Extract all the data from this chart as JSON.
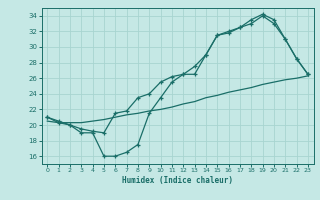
{
  "xlabel": "Humidex (Indice chaleur)",
  "ylabel": "",
  "bg_color": "#c5e8e5",
  "grid_color": "#a8d4d0",
  "line_color": "#1a6e68",
  "xlim": [
    -0.5,
    23.5
  ],
  "ylim": [
    15.0,
    35.0
  ],
  "xticks": [
    0,
    1,
    2,
    3,
    4,
    5,
    6,
    7,
    8,
    9,
    10,
    11,
    12,
    13,
    14,
    15,
    16,
    17,
    18,
    19,
    20,
    21,
    22,
    23
  ],
  "yticks": [
    16,
    18,
    20,
    22,
    24,
    26,
    28,
    30,
    32,
    34
  ],
  "line1_x": [
    0,
    1,
    2,
    3,
    4,
    5,
    6,
    7,
    8,
    9,
    10,
    11,
    12,
    13,
    14,
    15,
    16,
    17,
    18,
    19,
    20,
    21,
    22,
    23
  ],
  "line1_y": [
    20.5,
    20.3,
    20.3,
    20.3,
    20.5,
    20.7,
    21.0,
    21.3,
    21.5,
    21.8,
    22.0,
    22.3,
    22.7,
    23.0,
    23.5,
    23.8,
    24.2,
    24.5,
    24.8,
    25.2,
    25.5,
    25.8,
    26.0,
    26.3
  ],
  "line2_x": [
    0,
    1,
    2,
    3,
    4,
    5,
    6,
    7,
    8,
    9,
    10,
    11,
    12,
    13,
    14,
    15,
    16,
    17,
    18,
    19,
    20,
    21,
    22,
    23
  ],
  "line2_y": [
    21.0,
    20.5,
    20.0,
    19.5,
    19.2,
    19.0,
    21.5,
    21.8,
    23.5,
    24.0,
    25.5,
    26.2,
    26.5,
    27.5,
    29.0,
    31.5,
    31.8,
    32.5,
    33.0,
    34.0,
    33.0,
    31.0,
    28.5,
    26.5
  ],
  "line3_x": [
    0,
    1,
    2,
    3,
    4,
    5,
    6,
    7,
    8,
    9,
    10,
    11,
    12,
    13,
    14,
    15,
    16,
    17,
    18,
    19,
    20,
    21,
    22,
    23
  ],
  "line3_y": [
    21.0,
    20.3,
    20.0,
    19.0,
    19.0,
    16.0,
    16.0,
    16.5,
    17.5,
    21.5,
    23.5,
    25.5,
    26.5,
    26.5,
    29.0,
    31.5,
    32.0,
    32.5,
    33.5,
    34.2,
    33.5,
    31.0,
    28.5,
    26.5
  ]
}
